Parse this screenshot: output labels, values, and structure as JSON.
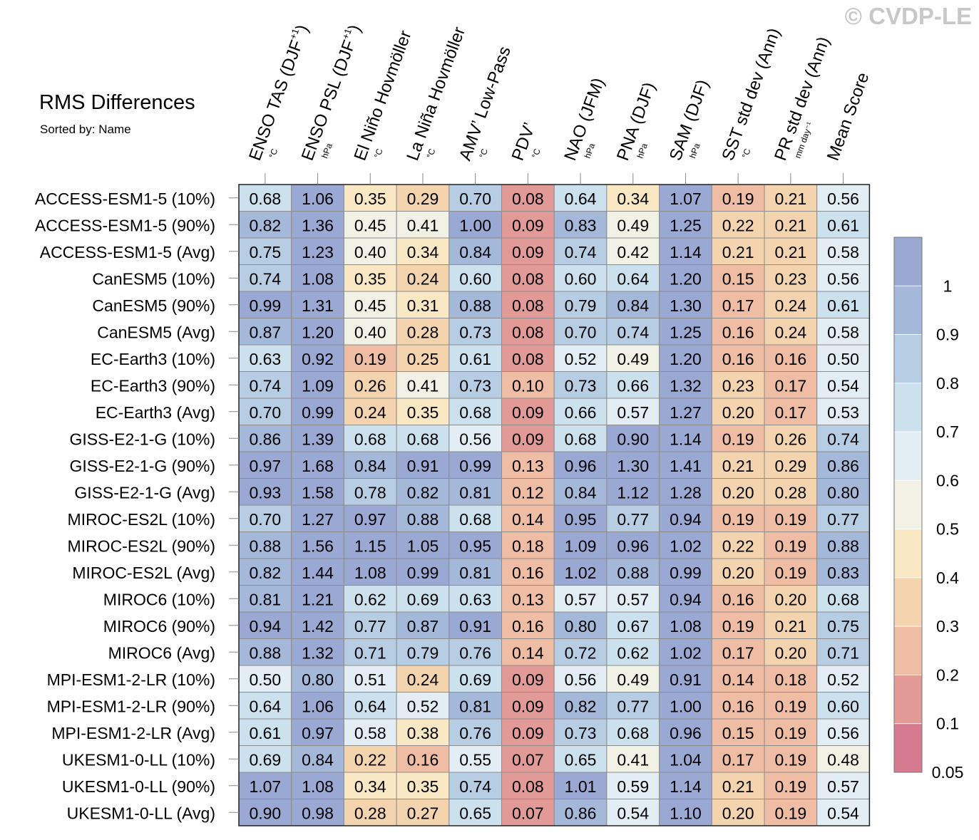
{
  "title": "RMS Differences",
  "subtitle": "Sorted by: Name",
  "watermark": "© CVDP-LE",
  "colors": [
    "#d57a8f",
    "#e29a96",
    "#efbca4",
    "#f4d3af",
    "#fae8c4",
    "#f1f1e6",
    "#e3eef4",
    "#cbe1ed",
    "#b6cde4",
    "#a4b8da",
    "#9aa9d4"
  ],
  "chart_data": {
    "type": "heatmap",
    "columns": [
      {
        "label": "ENSO TAS (DJF",
        "sup": "+1",
        "close": ")",
        "unit": "°C"
      },
      {
        "label": "ENSO PSL (DJF",
        "sup": "+1",
        "close": ")",
        "unit": "hPa"
      },
      {
        "label": "El Niño Hovmöller",
        "sup": "",
        "close": "",
        "unit": "°C"
      },
      {
        "label": "La Niña Hovmöller",
        "sup": "",
        "close": "",
        "unit": "°C"
      },
      {
        "label": "AMV’ Low-Pass",
        "sup": "",
        "close": "",
        "unit": "°C"
      },
      {
        "label": "PDV’",
        "sup": "",
        "close": "",
        "unit": "°C"
      },
      {
        "label": "NAO (JFM)",
        "sup": "",
        "close": "",
        "unit": "hPa"
      },
      {
        "label": "PNA (DJF)",
        "sup": "",
        "close": "",
        "unit": "hPa"
      },
      {
        "label": "SAM (DJF)",
        "sup": "",
        "close": "",
        "unit": "hPa"
      },
      {
        "label": "SST std dev (Ann)",
        "sup": "",
        "close": "",
        "unit": "°C"
      },
      {
        "label": "PR std dev (Ann)",
        "sup": "",
        "close": "",
        "unit": "mm day⁻¹"
      },
      {
        "label": "Mean Score",
        "sup": "",
        "close": "",
        "unit": ""
      }
    ],
    "rows": [
      "ACCESS-ESM1-5 (10%)",
      "ACCESS-ESM1-5 (90%)",
      "ACCESS-ESM1-5 (Avg)",
      "CanESM5 (10%)",
      "CanESM5 (90%)",
      "CanESM5 (Avg)",
      "EC-Earth3 (10%)",
      "EC-Earth3 (90%)",
      "EC-Earth3 (Avg)",
      "GISS-E2-1-G (10%)",
      "GISS-E2-1-G (90%)",
      "GISS-E2-1-G (Avg)",
      "MIROC-ES2L (10%)",
      "MIROC-ES2L (90%)",
      "MIROC-ES2L (Avg)",
      "MIROC6 (10%)",
      "MIROC6 (90%)",
      "MIROC6 (Avg)",
      "MPI-ESM1-2-LR (10%)",
      "MPI-ESM1-2-LR (90%)",
      "MPI-ESM1-2-LR (Avg)",
      "UKESM1-0-LL (10%)",
      "UKESM1-0-LL (90%)",
      "UKESM1-0-LL (Avg)"
    ],
    "values": [
      [
        "0.68",
        "1.06",
        "0.35",
        "0.29",
        "0.70",
        "0.08",
        "0.64",
        "0.34",
        "1.07",
        "0.19",
        "0.21",
        "0.56"
      ],
      [
        "0.82",
        "1.36",
        "0.45",
        "0.41",
        "1.00",
        "0.09",
        "0.83",
        "0.49",
        "1.25",
        "0.22",
        "0.21",
        "0.61"
      ],
      [
        "0.75",
        "1.23",
        "0.40",
        "0.34",
        "0.84",
        "0.09",
        "0.74",
        "0.42",
        "1.14",
        "0.21",
        "0.21",
        "0.58"
      ],
      [
        "0.74",
        "1.08",
        "0.35",
        "0.24",
        "0.60",
        "0.08",
        "0.60",
        "0.64",
        "1.20",
        "0.15",
        "0.23",
        "0.56"
      ],
      [
        "0.99",
        "1.31",
        "0.45",
        "0.31",
        "0.88",
        "0.08",
        "0.79",
        "0.84",
        "1.30",
        "0.17",
        "0.24",
        "0.61"
      ],
      [
        "0.87",
        "1.20",
        "0.40",
        "0.28",
        "0.73",
        "0.08",
        "0.70",
        "0.74",
        "1.25",
        "0.16",
        "0.24",
        "0.58"
      ],
      [
        "0.63",
        "0.92",
        "0.19",
        "0.25",
        "0.61",
        "0.08",
        "0.52",
        "0.49",
        "1.20",
        "0.16",
        "0.16",
        "0.50"
      ],
      [
        "0.74",
        "1.09",
        "0.26",
        "0.41",
        "0.73",
        "0.10",
        "0.73",
        "0.66",
        "1.32",
        "0.23",
        "0.17",
        "0.54"
      ],
      [
        "0.70",
        "0.99",
        "0.24",
        "0.35",
        "0.68",
        "0.09",
        "0.66",
        "0.57",
        "1.27",
        "0.20",
        "0.17",
        "0.53"
      ],
      [
        "0.86",
        "1.39",
        "0.68",
        "0.68",
        "0.56",
        "0.09",
        "0.68",
        "0.90",
        "1.14",
        "0.19",
        "0.26",
        "0.74"
      ],
      [
        "0.97",
        "1.68",
        "0.84",
        "0.91",
        "0.99",
        "0.13",
        "0.96",
        "1.30",
        "1.41",
        "0.21",
        "0.29",
        "0.86"
      ],
      [
        "0.93",
        "1.58",
        "0.78",
        "0.82",
        "0.81",
        "0.12",
        "0.84",
        "1.12",
        "1.28",
        "0.20",
        "0.28",
        "0.80"
      ],
      [
        "0.70",
        "1.27",
        "0.97",
        "0.88",
        "0.68",
        "0.14",
        "0.95",
        "0.77",
        "0.94",
        "0.19",
        "0.19",
        "0.77"
      ],
      [
        "0.88",
        "1.56",
        "1.15",
        "1.05",
        "0.95",
        "0.18",
        "1.09",
        "0.96",
        "1.02",
        "0.22",
        "0.19",
        "0.88"
      ],
      [
        "0.82",
        "1.44",
        "1.08",
        "0.99",
        "0.81",
        "0.16",
        "1.02",
        "0.88",
        "0.99",
        "0.20",
        "0.19",
        "0.83"
      ],
      [
        "0.81",
        "1.21",
        "0.62",
        "0.69",
        "0.63",
        "0.13",
        "0.57",
        "0.57",
        "0.94",
        "0.16",
        "0.20",
        "0.68"
      ],
      [
        "0.94",
        "1.42",
        "0.77",
        "0.87",
        "0.91",
        "0.16",
        "0.80",
        "0.67",
        "1.08",
        "0.19",
        "0.21",
        "0.75"
      ],
      [
        "0.88",
        "1.32",
        "0.71",
        "0.79",
        "0.76",
        "0.14",
        "0.72",
        "0.62",
        "1.02",
        "0.17",
        "0.20",
        "0.71"
      ],
      [
        "0.50",
        "0.80",
        "0.51",
        "0.24",
        "0.69",
        "0.09",
        "0.56",
        "0.49",
        "0.91",
        "0.14",
        "0.18",
        "0.52"
      ],
      [
        "0.64",
        "1.06",
        "0.64",
        "0.52",
        "0.81",
        "0.09",
        "0.82",
        "0.77",
        "1.00",
        "0.16",
        "0.19",
        "0.60"
      ],
      [
        "0.61",
        "0.97",
        "0.58",
        "0.38",
        "0.76",
        "0.09",
        "0.73",
        "0.68",
        "0.96",
        "0.15",
        "0.19",
        "0.56"
      ],
      [
        "0.69",
        "0.84",
        "0.22",
        "0.16",
        "0.55",
        "0.07",
        "0.65",
        "0.41",
        "1.04",
        "0.17",
        "0.19",
        "0.48"
      ],
      [
        "1.07",
        "1.08",
        "0.34",
        "0.35",
        "0.74",
        "0.08",
        "1.01",
        "0.59",
        "1.14",
        "0.21",
        "0.19",
        "0.57"
      ],
      [
        "0.90",
        "0.98",
        "0.28",
        "0.27",
        "0.65",
        "0.07",
        "0.86",
        "0.54",
        "1.10",
        "0.20",
        "0.19",
        "0.54"
      ]
    ],
    "colorbar_levels": [
      0.05,
      0.1,
      0.2,
      0.3,
      0.4,
      0.5,
      0.6,
      0.7,
      0.8,
      0.9,
      1
    ],
    "colorbar_labels": [
      "1",
      "0.9",
      "0.8",
      "0.7",
      "0.6",
      "0.5",
      "0.4",
      "0.3",
      "0.2",
      "0.1",
      "0.05"
    ]
  }
}
